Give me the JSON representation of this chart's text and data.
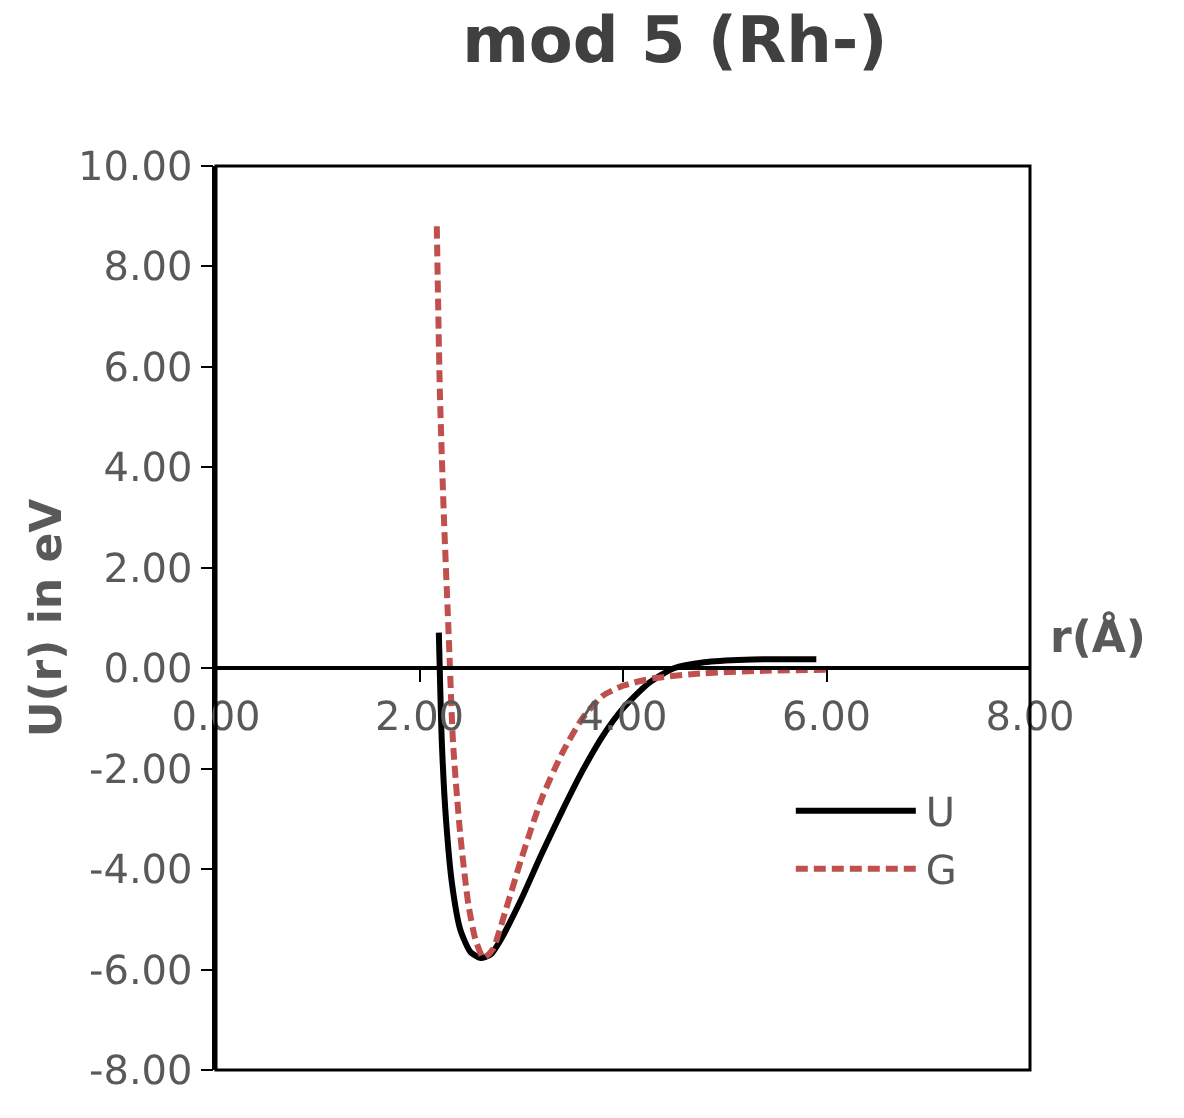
{
  "chart_data": {
    "type": "line",
    "title": "mod 5 (Rh-)",
    "xlabel": "r(Å)",
    "ylabel": "U(r) in eV",
    "xlim": [
      0,
      8
    ],
    "ylim": [
      -8,
      10
    ],
    "xticks": [
      {
        "value": 0,
        "label": "0.00"
      },
      {
        "value": 2,
        "label": "2.00"
      },
      {
        "value": 4,
        "label": "4.00"
      },
      {
        "value": 6,
        "label": "6.00"
      },
      {
        "value": 8,
        "label": "8.00"
      }
    ],
    "yticks": [
      {
        "value": -8,
        "label": "-8.00"
      },
      {
        "value": -6,
        "label": "-6.00"
      },
      {
        "value": -4,
        "label": "-4.00"
      },
      {
        "value": -2,
        "label": "-2.00"
      },
      {
        "value": 0,
        "label": "0.00"
      },
      {
        "value": 2,
        "label": "2.00"
      },
      {
        "value": 4,
        "label": "4.00"
      },
      {
        "value": 6,
        "label": "6.00"
      },
      {
        "value": 8,
        "label": "8.00"
      },
      {
        "value": 10,
        "label": "10.00"
      }
    ],
    "legend": "right",
    "marker": "none",
    "series": [
      {
        "name": "U",
        "color": "#000000",
        "line_style": "solid",
        "x": [
          2.19,
          2.22,
          2.26,
          2.32,
          2.4,
          2.5,
          2.6,
          2.7,
          2.8,
          3.0,
          3.2,
          3.4,
          3.6,
          3.8,
          4.0,
          4.25,
          4.5,
          4.8,
          5.2,
          5.6,
          5.9
        ],
        "values": [
          0.71,
          -1.5,
          -3.0,
          -4.3,
          -5.2,
          -5.65,
          -5.77,
          -5.7,
          -5.4,
          -4.6,
          -3.7,
          -2.85,
          -2.05,
          -1.35,
          -0.8,
          -0.3,
          0.0,
          0.12,
          0.17,
          0.18,
          0.18
        ]
      },
      {
        "name": "G",
        "color": "#c0504d",
        "line_style": "dashed",
        "x": [
          2.17,
          2.2,
          2.24,
          2.29,
          2.33,
          2.4,
          2.48,
          2.55,
          2.63,
          2.72,
          2.85,
          3.0,
          3.2,
          3.4,
          3.6,
          3.8,
          4.0,
          4.3,
          4.8,
          5.4,
          6.0
        ],
        "values": [
          8.8,
          5.5,
          3.0,
          0.5,
          -1.5,
          -3.3,
          -4.7,
          -5.4,
          -5.77,
          -5.6,
          -4.8,
          -3.8,
          -2.6,
          -1.7,
          -1.0,
          -0.55,
          -0.35,
          -0.2,
          -0.1,
          -0.05,
          -0.03
        ]
      }
    ]
  }
}
